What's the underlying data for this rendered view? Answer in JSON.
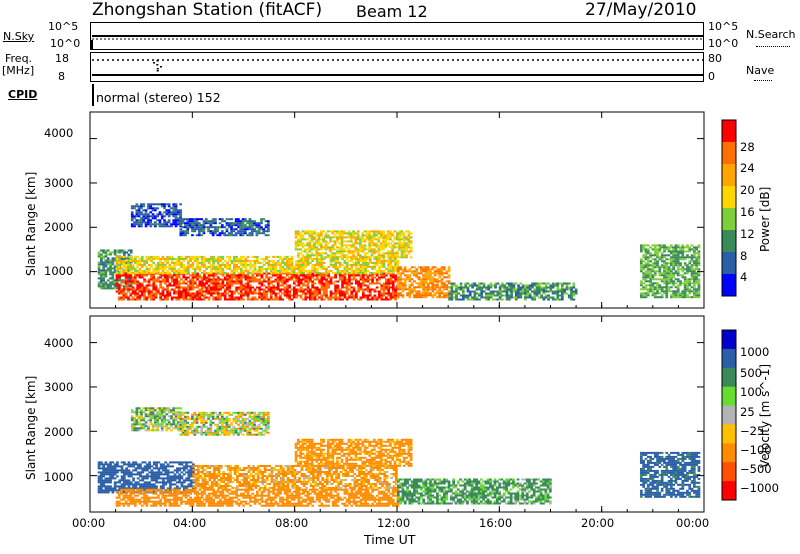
{
  "header": {
    "station": "Zhongshan Station (fitACF)",
    "beam": "Beam 12",
    "date": "27/May/2010"
  },
  "top_panels": {
    "nsky_label": "N.Sky",
    "nsky_ticks": [
      "10^5",
      "10^0"
    ],
    "nsearch_label": "N.Search",
    "nsearch_ticks": [
      "10^5",
      "10^0"
    ],
    "freq_label": "Freq.",
    "freq_unit": "[MHz]",
    "freq_ticks": [
      "18",
      "8"
    ],
    "nave_label": "Nave",
    "nave_ticks": [
      "80",
      "0"
    ],
    "cpid_label": "CPID",
    "cpid_value": "normal (stereo) 152"
  },
  "colors": {
    "power_scale": [
      "#0000ff",
      "#2a5fa8",
      "#3a8a5a",
      "#7fcf3a",
      "#ffd700",
      "#ffa500",
      "#ff7000",
      "#ff0000"
    ],
    "velocity_scale": [
      "#ff0000",
      "#ff5000",
      "#ff8c00",
      "#ffc000",
      "#b4b4b4",
      "#66dd33",
      "#3a8a5a",
      "#2a5fa8",
      "#0000cc"
    ]
  },
  "chart_data": [
    {
      "type": "heatmap",
      "quantity": "power",
      "ylabel": "Slant Range [km]",
      "colorbar_label": "Power [dB]",
      "colorbar_ticks": [
        "28",
        "24",
        "20",
        "16",
        "12",
        "8",
        "4"
      ],
      "colorbar_range": [
        0,
        32
      ],
      "y_ticks": [
        "4000",
        "3000",
        "2000",
        "1000"
      ],
      "ylim": [
        180,
        4600
      ],
      "xlim_hours": [
        0,
        24
      ],
      "regions": [
        {
          "t0": 0.3,
          "t1": 1.6,
          "r0": 600,
          "r1": 1500,
          "level": 10
        },
        {
          "t0": 1.6,
          "t1": 3.5,
          "r0": 2000,
          "r1": 2500,
          "level": 5
        },
        {
          "t0": 3.5,
          "t1": 7.0,
          "r0": 1800,
          "r1": 2200,
          "level": 6
        },
        {
          "t0": 1.0,
          "t1": 12.0,
          "r0": 350,
          "r1": 950,
          "level": 28
        },
        {
          "t0": 1.0,
          "t1": 12.0,
          "r0": 950,
          "r1": 1350,
          "level": 18
        },
        {
          "t0": 8.0,
          "t1": 12.5,
          "r0": 1300,
          "r1": 1900,
          "level": 18
        },
        {
          "t0": 12.0,
          "t1": 14.0,
          "r0": 400,
          "r1": 1100,
          "level": 24
        },
        {
          "t0": 14.0,
          "t1": 19.0,
          "r0": 350,
          "r1": 750,
          "level": 10
        },
        {
          "t0": 21.5,
          "t1": 23.8,
          "r0": 400,
          "r1": 1600,
          "level": 12
        }
      ]
    },
    {
      "type": "heatmap",
      "quantity": "velocity",
      "ylabel": "Slant Range [km]",
      "colorbar_label": "Velocity [m s^-1]",
      "colorbar_ticks": [
        "1000",
        "500",
        "100",
        "25",
        "−25",
        "−100",
        "−500",
        "−1000"
      ],
      "y_ticks": [
        "4000",
        "3000",
        "2000",
        "1000"
      ],
      "ylim": [
        180,
        4600
      ],
      "xlim_hours": [
        0,
        24
      ],
      "x_ticks": [
        "00:00",
        "04:00",
        "08:00",
        "12:00",
        "16:00",
        "20:00",
        "00:00"
      ],
      "xlabel": "Time UT",
      "regions": [
        {
          "t0": 0.3,
          "t1": 4.0,
          "r0": 600,
          "r1": 1300,
          "level": 800
        },
        {
          "t0": 1.6,
          "t1": 3.5,
          "r0": 2000,
          "r1": 2500,
          "level": 60
        },
        {
          "t0": 3.5,
          "t1": 7.0,
          "r0": 1900,
          "r1": 2400,
          "level": 0
        },
        {
          "t0": 1.0,
          "t1": 12.0,
          "r0": 300,
          "r1": 700,
          "level": -300
        },
        {
          "t0": 4.0,
          "t1": 12.0,
          "r0": 700,
          "r1": 1200,
          "level": -150
        },
        {
          "t0": 8.0,
          "t1": 12.5,
          "r0": 1200,
          "r1": 1800,
          "level": -200
        },
        {
          "t0": 12.0,
          "t1": 18.0,
          "r0": 350,
          "r1": 900,
          "level": 150
        },
        {
          "t0": 21.5,
          "t1": 23.8,
          "r0": 500,
          "r1": 1500,
          "level": 600
        }
      ]
    }
  ]
}
